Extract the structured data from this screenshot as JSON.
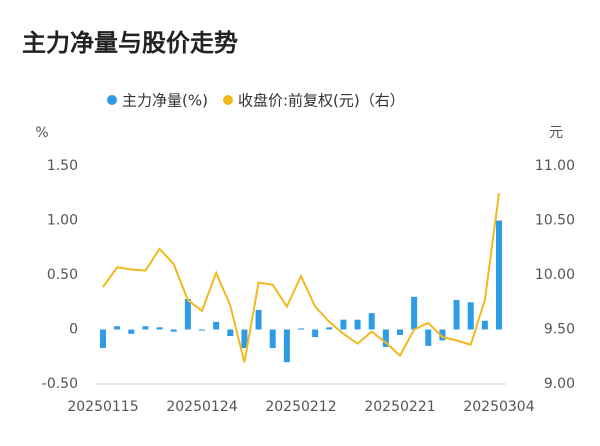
{
  "chart_data": {
    "type": "bar_line",
    "title": "主力净量与股价走势",
    "y_unit": "%",
    "y2_unit": "元",
    "categories": [
      "20250115",
      null,
      null,
      null,
      null,
      null,
      null,
      "20250124",
      null,
      null,
      null,
      null,
      null,
      null,
      "20250212",
      null,
      null,
      null,
      null,
      null,
      null,
      "20250221",
      null,
      null,
      null,
      null,
      null,
      null,
      "20250304"
    ],
    "series": [
      {
        "name": "主力净量(%)",
        "type": "bar",
        "color": "#2e9be6",
        "values": [
          -0.17,
          0.03,
          -0.04,
          0.03,
          0.02,
          -0.02,
          0.28,
          -0.01,
          0.07,
          -0.06,
          -0.17,
          0.18,
          -0.17,
          -0.3,
          0.01,
          -0.07,
          0.02,
          0.09,
          0.09,
          0.15,
          -0.16,
          -0.05,
          0.3,
          -0.15,
          -0.1,
          0.27,
          0.25,
          0.08,
          1.0
        ]
      },
      {
        "name": "收盘价:前复权(元)（右）",
        "type": "line",
        "axis": "y2",
        "color": "#f2b81f",
        "values": [
          9.89,
          10.07,
          10.05,
          10.04,
          10.24,
          10.1,
          9.77,
          9.67,
          10.02,
          9.72,
          9.2,
          9.93,
          9.91,
          9.71,
          9.99,
          9.71,
          9.57,
          9.46,
          9.37,
          9.48,
          9.38,
          9.26,
          9.5,
          9.56,
          9.43,
          9.4,
          9.36,
          9.77,
          10.75
        ]
      }
    ],
    "ylim": [
      -0.5,
      1.5
    ],
    "yticks": [
      {
        "value": -0.5,
        "label": "-0.50"
      },
      0,
      {
        "value": 0.5,
        "label": "0.50"
      },
      {
        "value": 1,
        "label": "1.00"
      },
      {
        "value": 1.5,
        "label": "1.50"
      }
    ],
    "y2lim": [
      9,
      11
    ],
    "y2ticks": [
      {
        "value": 9,
        "label": "9.00"
      },
      {
        "value": 9.5,
        "label": "9.50"
      },
      {
        "value": 10,
        "label": "10.00"
      },
      {
        "value": 10.5,
        "label": "10.50"
      },
      {
        "value": 11,
        "label": "11.00"
      }
    ]
  }
}
